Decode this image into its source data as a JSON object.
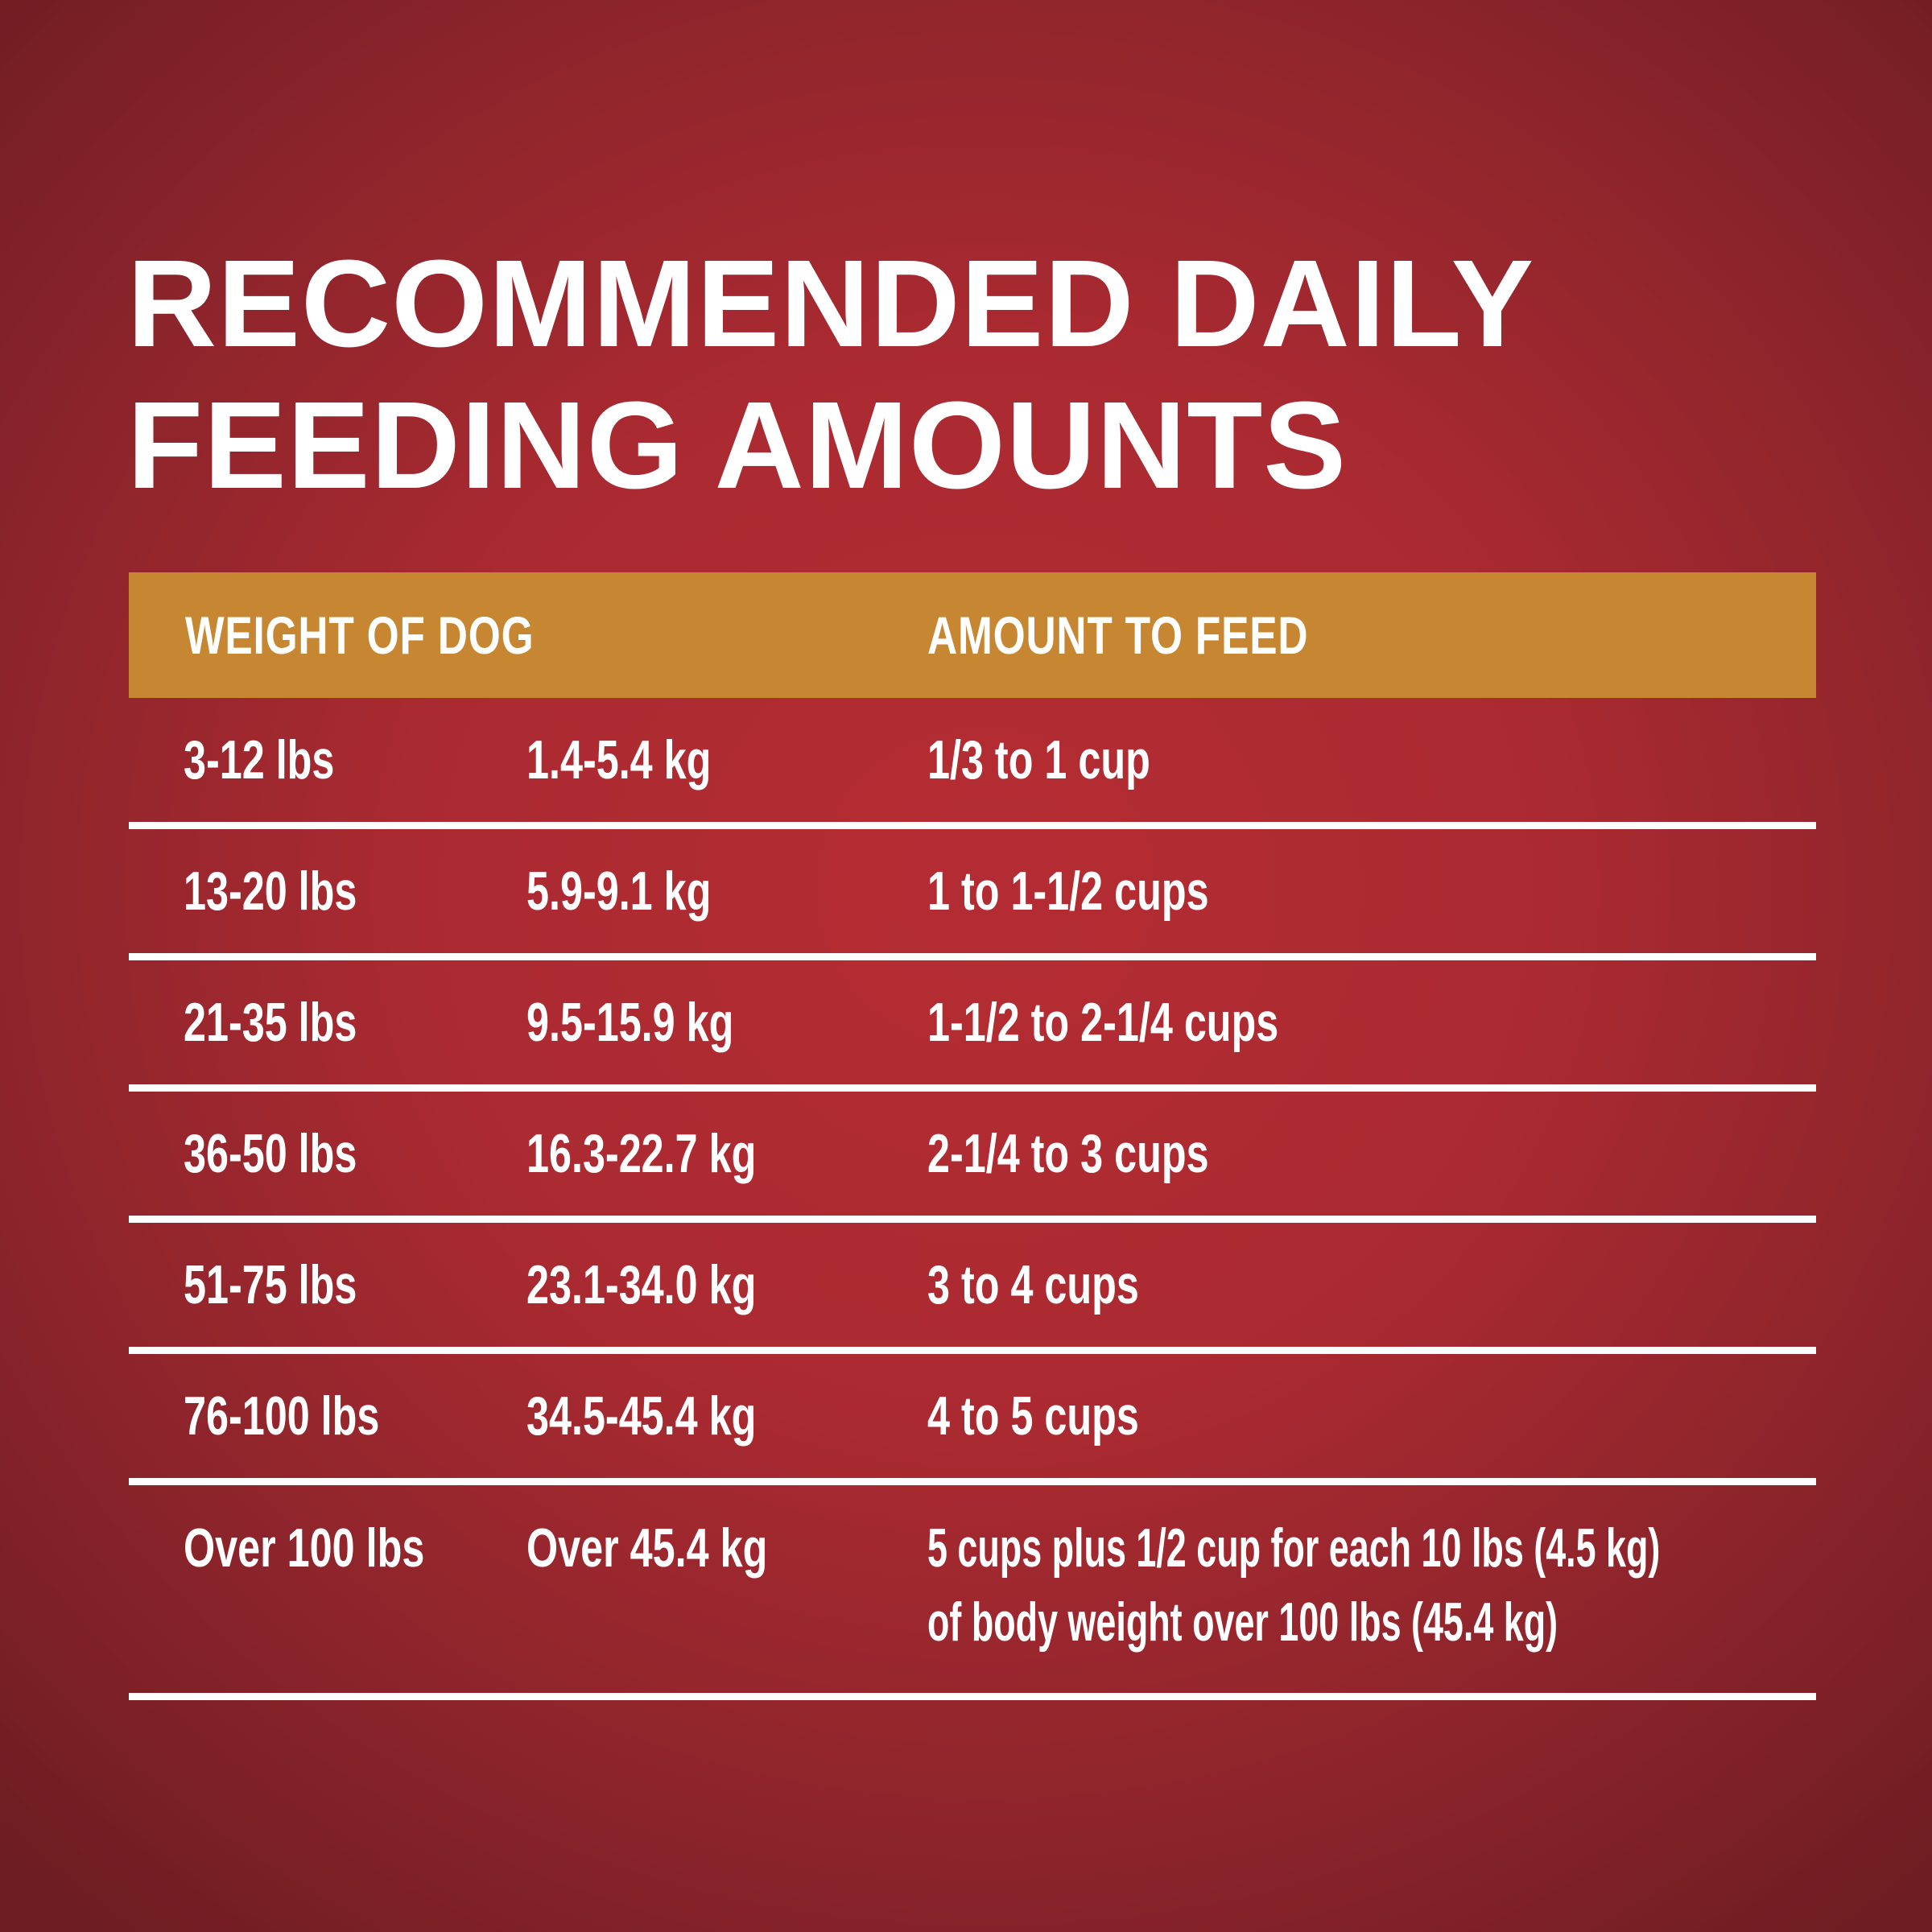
{
  "colors": {
    "background_center": "#b42c33",
    "background_edge": "#6e1d22",
    "header_bar_gold": "#c78732",
    "text": "#ffffff",
    "divider": "#ffffff"
  },
  "chart_data": {
    "type": "table",
    "title_line1": "RECOMMENDED DAILY",
    "title_line2": "FEEDING AMOUNTS",
    "column_headers": [
      "WEIGHT OF DOG",
      "AMOUNT TO FEED"
    ],
    "rows": [
      {
        "weight_lbs": "3-12 lbs",
        "weight_kg": "1.4-5.4 kg",
        "amount": "1/3 to 1 cup"
      },
      {
        "weight_lbs": "13-20 lbs",
        "weight_kg": "5.9-9.1 kg",
        "amount": "1 to 1-1/2 cups"
      },
      {
        "weight_lbs": "21-35 lbs",
        "weight_kg": "9.5-15.9 kg",
        "amount": "1-1/2 to 2-1/4 cups"
      },
      {
        "weight_lbs": "36-50 lbs",
        "weight_kg": "16.3-22.7 kg",
        "amount": "2-1/4 to 3 cups"
      },
      {
        "weight_lbs": "51-75 lbs",
        "weight_kg": "23.1-34.0 kg",
        "amount": "3 to 4 cups"
      },
      {
        "weight_lbs": "76-100 lbs",
        "weight_kg": "34.5-45.4 kg",
        "amount": "4 to 5 cups"
      },
      {
        "weight_lbs": "Over 100 lbs",
        "weight_kg": "Over 45.4 kg",
        "amount_line1": "5 cups plus 1/2 cup for each 10 lbs (4.5 kg)",
        "amount_line2": "of body weight over 100 lbs (45.4 kg)"
      }
    ]
  }
}
